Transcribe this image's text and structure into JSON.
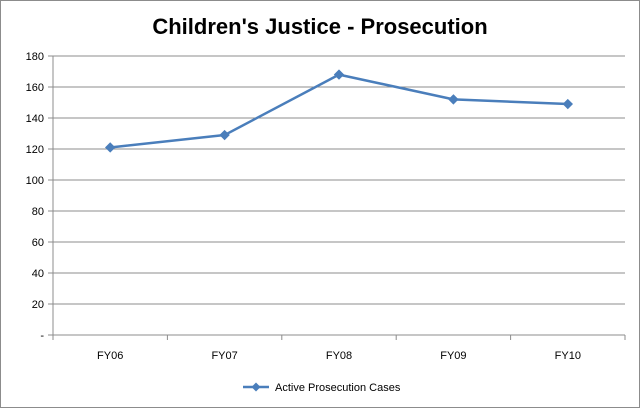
{
  "chart_data": {
    "type": "line",
    "title": "Children's Justice - Prosecution",
    "xlabel": "",
    "ylabel": "",
    "categories": [
      "FY06",
      "FY07",
      "FY08",
      "FY09",
      "FY10"
    ],
    "series": [
      {
        "name": "Active Prosecution Cases",
        "values": [
          121,
          129,
          168,
          152,
          149
        ],
        "color": "#4a7ebb",
        "marker": "diamond"
      }
    ],
    "ylim": [
      0,
      180
    ],
    "yticks": [
      {
        "value": 0,
        "label": "-"
      },
      {
        "value": 20,
        "label": "20"
      },
      {
        "value": 40,
        "label": "40"
      },
      {
        "value": 60,
        "label": "60"
      },
      {
        "value": 80,
        "label": "80"
      },
      {
        "value": 100,
        "label": "100"
      },
      {
        "value": 120,
        "label": "120"
      },
      {
        "value": 140,
        "label": "140"
      },
      {
        "value": 160,
        "label": "160"
      },
      {
        "value": 180,
        "label": "180"
      }
    ],
    "grid": true,
    "legend": "bottom"
  }
}
